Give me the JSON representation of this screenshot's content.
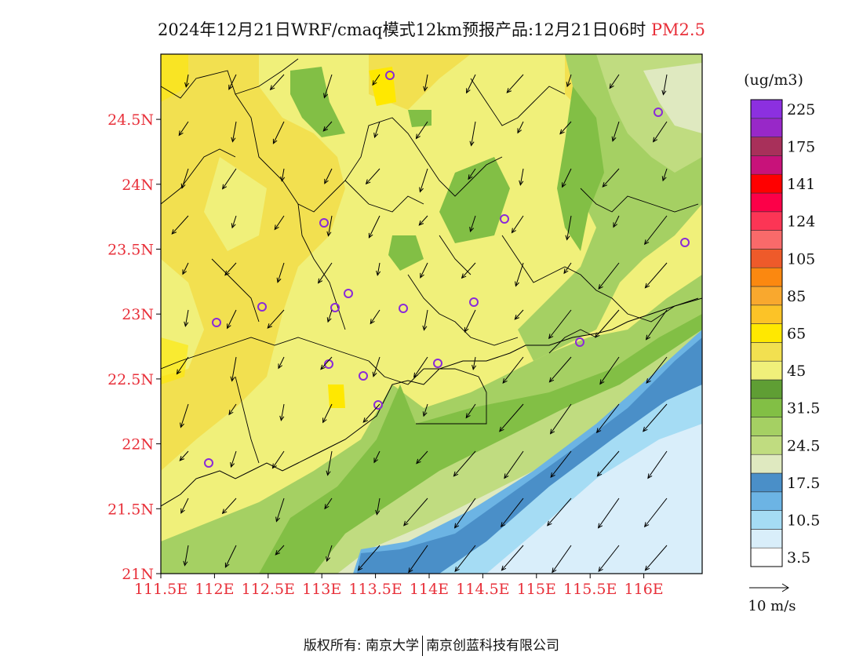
{
  "title": {
    "main": "2024年12月21日WRF/cmaq模式12km预报产品:12月21日06时",
    "pollutant": "PM2.5"
  },
  "axes": {
    "x_ticks": [
      "111.5E",
      "112E",
      "112.5E",
      "113E",
      "113.5E",
      "114E",
      "114.5E",
      "115E",
      "115.5E",
      "116E"
    ],
    "y_ticks": [
      "21N",
      "21.5N",
      "22N",
      "22.5N",
      "23N",
      "23.5N",
      "24N",
      "24.5N"
    ],
    "label_color": "#e8303a"
  },
  "legend": {
    "unit": "(ug/m3)",
    "colors": [
      "#ffffff",
      "#d9eefa",
      "#a5dcf4",
      "#6cb4e4",
      "#4a8fc8",
      "#dfe9c0",
      "#c0dc80",
      "#a5d063",
      "#82bf45",
      "#5f9e34",
      "#f0f07a",
      "#f2e050",
      "#ffe800",
      "#fcc327",
      "#f9a82e",
      "#fb8810",
      "#ee5a2a",
      "#f96a6a",
      "#fc3555",
      "#fc0048",
      "#ff0000",
      "#c8127a",
      "#a8305a",
      "#9828c8",
      "#8c30e0"
    ],
    "labels": [
      "3.5",
      "10.5",
      "17.5",
      "24.5",
      "31.5",
      "45",
      "65",
      "85",
      "105",
      "124",
      "141",
      "175",
      "225"
    ]
  },
  "wind": {
    "reference_label": "10 m/s"
  },
  "footer": {
    "left": "版权所有: 南京大学",
    "right": "南京创蓝科技有限公司"
  }
}
